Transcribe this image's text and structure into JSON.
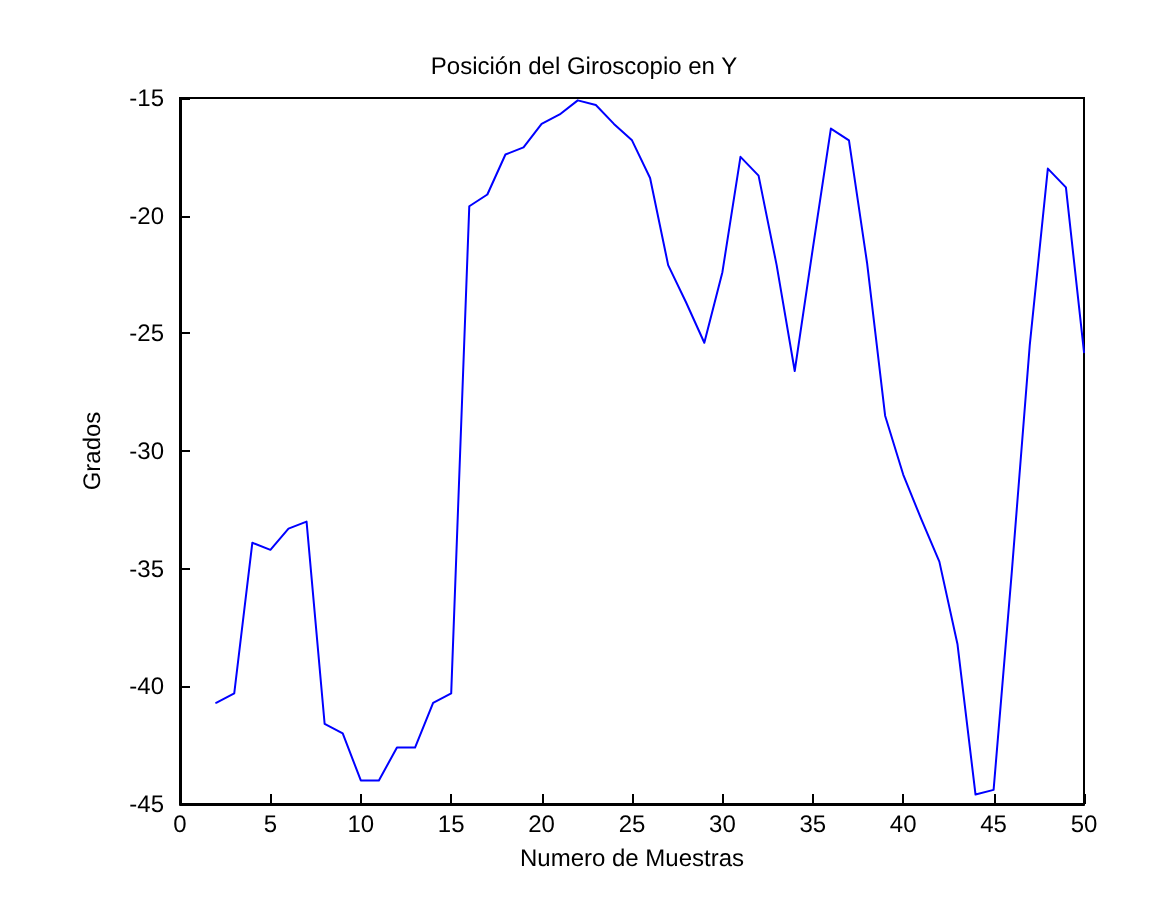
{
  "chart_data": {
    "type": "line",
    "title": "Posición del Giroscopio en Y",
    "xlabel": "Numero de Muestras",
    "ylabel": "Grados",
    "x": [
      2,
      3,
      4,
      5,
      6,
      7,
      8,
      9,
      10,
      11,
      12,
      13,
      14,
      15,
      16,
      17,
      18,
      19,
      20,
      21,
      22,
      23,
      24,
      25,
      26,
      27,
      28,
      29,
      30,
      31,
      32,
      33,
      34,
      35,
      36,
      37,
      38,
      39,
      40,
      41,
      42,
      43,
      44,
      45,
      46,
      47,
      48,
      49,
      50
    ],
    "series": [
      {
        "color": "#0000ff",
        "values": [
          -40.7,
          -40.3,
          -33.9,
          -34.2,
          -33.3,
          -33.0,
          -41.6,
          -42.0,
          -44.0,
          -44.0,
          -42.6,
          -42.6,
          -40.7,
          -40.3,
          -19.6,
          -19.1,
          -17.4,
          -17.1,
          -16.1,
          -15.7,
          -15.1,
          -15.3,
          -16.1,
          -16.8,
          -18.4,
          -22.1,
          -23.7,
          -25.4,
          -22.4,
          -17.5,
          -18.3,
          -22.1,
          -26.6,
          -21.4,
          -16.3,
          -16.8,
          -22.0,
          -28.5,
          -31.0,
          -32.9,
          -34.7,
          -38.2,
          -44.6,
          -44.4,
          -35.2,
          -25.5,
          -18.0,
          -18.8,
          -25.8
        ]
      }
    ],
    "xlim": [
      0,
      50
    ],
    "xticks": [
      0,
      5,
      10,
      15,
      20,
      25,
      30,
      35,
      40,
      45,
      50
    ],
    "ylim": [
      -45,
      -15
    ],
    "yticks": [
      -45,
      -40,
      -35,
      -30,
      -25,
      -20,
      -15
    ],
    "grid": false,
    "marker": "none",
    "line_style": "solid"
  }
}
